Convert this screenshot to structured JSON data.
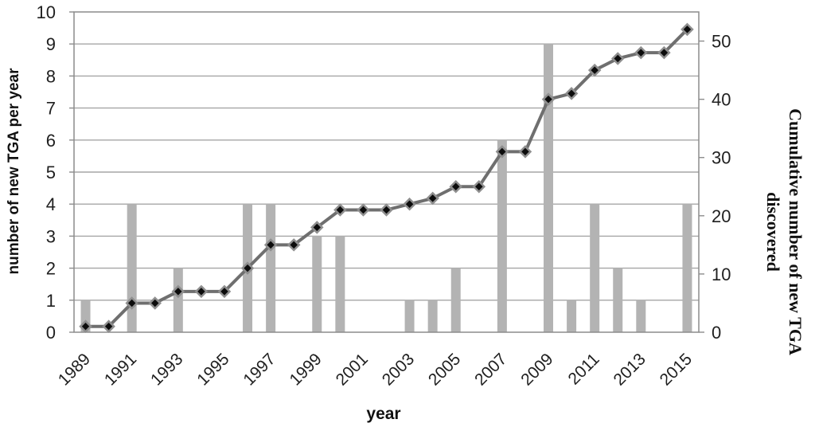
{
  "chart_data": {
    "type": "combo-bar-line",
    "categories": [
      "1989",
      "1990",
      "1991",
      "1992",
      "1993",
      "1994",
      "1995",
      "1996",
      "1997",
      "1998",
      "1999",
      "2000",
      "2001",
      "2002",
      "2003",
      "2004",
      "2005",
      "2006",
      "2007",
      "2008",
      "2009",
      "2010",
      "2011",
      "2012",
      "2013",
      "2014",
      "2015"
    ],
    "series": [
      {
        "name": "number of new TGA per year",
        "type": "bar",
        "axis": "left",
        "values": [
          1,
          0,
          4,
          0,
          2,
          0,
          0,
          4,
          4,
          0,
          3,
          3,
          0,
          0,
          1,
          1,
          2,
          0,
          6,
          0,
          9,
          1,
          4,
          2,
          1,
          0,
          4
        ]
      },
      {
        "name": "Cumulative number of new TGA discovered",
        "type": "line",
        "axis": "right",
        "values": [
          1,
          1,
          5,
          5,
          7,
          7,
          7,
          11,
          15,
          15,
          18,
          21,
          21,
          21,
          22,
          23,
          25,
          25,
          31,
          31,
          40,
          41,
          45,
          47,
          48,
          48,
          52
        ]
      }
    ],
    "left_axis": {
      "label": "number of new TGA per year",
      "min": 0,
      "max": 10,
      "ticks": [
        0,
        1,
        2,
        3,
        4,
        5,
        6,
        7,
        8,
        9,
        10
      ]
    },
    "right_axis": {
      "label": "Cumulative number of new TGA discovered",
      "label_lines": [
        "Cumulative number of new TGA",
        "discovered"
      ],
      "min": 0,
      "max": 55,
      "ticks": [
        0,
        10,
        20,
        30,
        40,
        50
      ]
    },
    "x_axis": {
      "label": "year",
      "tick_labels": [
        "1989",
        "1991",
        "1993",
        "1995",
        "1997",
        "1999",
        "2001",
        "2003",
        "2005",
        "2007",
        "2009",
        "2011",
        "2013",
        "2015"
      ]
    },
    "grid": "horizontal",
    "legend": "none",
    "colors": {
      "bar": "#b3b3b3",
      "line": "#6f6f6f",
      "marker_fill": "#0c0c0c",
      "marker_stroke": "#8f8f8f",
      "grid": "#a6a6a6",
      "border": "#8c8c8c",
      "text": "#1f1f1f"
    }
  }
}
